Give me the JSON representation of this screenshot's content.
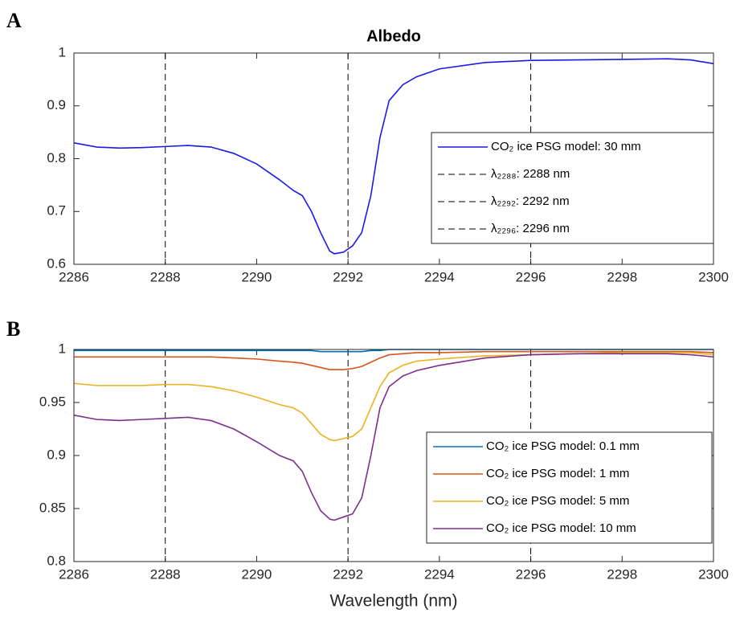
{
  "chart_data": [
    {
      "type": "line",
      "panel_label": "A",
      "title": "Albedo",
      "x": [
        2286,
        2286.5,
        2287,
        2287.5,
        2288,
        2288.5,
        2289,
        2289.5,
        2290,
        2290.5,
        2290.8,
        2291,
        2291.2,
        2291.4,
        2291.6,
        2291.7,
        2291.9,
        2292.1,
        2292.3,
        2292.5,
        2292.7,
        2292.9,
        2293.2,
        2293.5,
        2294,
        2295,
        2296,
        2297,
        2298,
        2299,
        2299.5,
        2300
      ],
      "series": [
        {
          "name": "CO₂ ice PSG model: 30 mm",
          "color": "#1a1aeb",
          "values": [
            0.83,
            0.822,
            0.82,
            0.821,
            0.823,
            0.825,
            0.822,
            0.81,
            0.79,
            0.76,
            0.74,
            0.73,
            0.7,
            0.66,
            0.625,
            0.62,
            0.623,
            0.635,
            0.66,
            0.73,
            0.84,
            0.91,
            0.94,
            0.955,
            0.97,
            0.982,
            0.986,
            0.987,
            0.988,
            0.989,
            0.987,
            0.98
          ]
        }
      ],
      "vlines": [
        {
          "name": "λ₂₂₈₈: 2288 nm",
          "x": 2288
        },
        {
          "name": "λ₂₂₉₂: 2292 nm",
          "x": 2292
        },
        {
          "name": "λ₂₂₉₆: 2296 nm",
          "x": 2296
        }
      ],
      "xlim": [
        2286,
        2300
      ],
      "xticks": [
        2286,
        2288,
        2290,
        2292,
        2294,
        2296,
        2298,
        2300
      ],
      "ylim": [
        0.6,
        1
      ],
      "yticks": [
        0.6,
        0.7,
        0.8,
        0.9,
        1
      ]
    },
    {
      "type": "line",
      "panel_label": "B",
      "xlabel": "Wavelength (nm)",
      "x": [
        2286,
        2286.5,
        2287,
        2287.5,
        2288,
        2288.5,
        2289,
        2289.5,
        2290,
        2290.5,
        2290.8,
        2291,
        2291.2,
        2291.4,
        2291.6,
        2291.7,
        2291.9,
        2292.1,
        2292.3,
        2292.5,
        2292.7,
        2292.9,
        2293.2,
        2293.5,
        2294,
        2295,
        2296,
        2297,
        2298,
        2299,
        2299.5,
        2300
      ],
      "series": [
        {
          "name": "CO₂ ice PSG model: 0.1 mm",
          "color": "#0072bd",
          "values": [
            0.999,
            0.999,
            0.999,
            0.999,
            0.999,
            0.999,
            0.999,
            0.999,
            0.999,
            0.999,
            0.999,
            0.999,
            0.999,
            0.998,
            0.998,
            0.998,
            0.998,
            0.998,
            0.998,
            0.999,
            0.999,
            1,
            1,
            1,
            1,
            1,
            1,
            1,
            1,
            1,
            1,
            1
          ]
        },
        {
          "name": "CO₂ ice PSG model: 1 mm",
          "color": "#d95319",
          "values": [
            0.993,
            0.993,
            0.993,
            0.993,
            0.993,
            0.993,
            0.993,
            0.992,
            0.991,
            0.989,
            0.988,
            0.987,
            0.985,
            0.983,
            0.981,
            0.981,
            0.981,
            0.982,
            0.984,
            0.988,
            0.992,
            0.995,
            0.996,
            0.997,
            0.997,
            0.998,
            0.998,
            0.998,
            0.998,
            0.998,
            0.998,
            0.997
          ]
        },
        {
          "name": "CO₂ ice PSG model: 5 mm",
          "color": "#edb120",
          "values": [
            0.968,
            0.966,
            0.966,
            0.966,
            0.967,
            0.967,
            0.965,
            0.961,
            0.955,
            0.948,
            0.945,
            0.94,
            0.93,
            0.92,
            0.915,
            0.914,
            0.916,
            0.918,
            0.925,
            0.945,
            0.965,
            0.978,
            0.985,
            0.989,
            0.991,
            0.994,
            0.995,
            0.996,
            0.997,
            0.997,
            0.997,
            0.995
          ]
        },
        {
          "name": "CO₂ ice PSG model: 10 mm",
          "color": "#7e2f8e",
          "values": [
            0.938,
            0.934,
            0.933,
            0.934,
            0.935,
            0.936,
            0.933,
            0.925,
            0.913,
            0.9,
            0.895,
            0.885,
            0.865,
            0.848,
            0.84,
            0.839,
            0.842,
            0.845,
            0.86,
            0.9,
            0.945,
            0.965,
            0.975,
            0.98,
            0.985,
            0.992,
            0.995,
            0.996,
            0.996,
            0.996,
            0.995,
            0.993
          ]
        }
      ],
      "vlines": [
        2288,
        2292,
        2296
      ],
      "xlim": [
        2286,
        2300
      ],
      "xticks": [
        2286,
        2288,
        2290,
        2292,
        2294,
        2296,
        2298,
        2300
      ],
      "ylim": [
        0.8,
        1
      ],
      "yticks": [
        0.8,
        0.85,
        0.9,
        0.95,
        1
      ]
    }
  ]
}
